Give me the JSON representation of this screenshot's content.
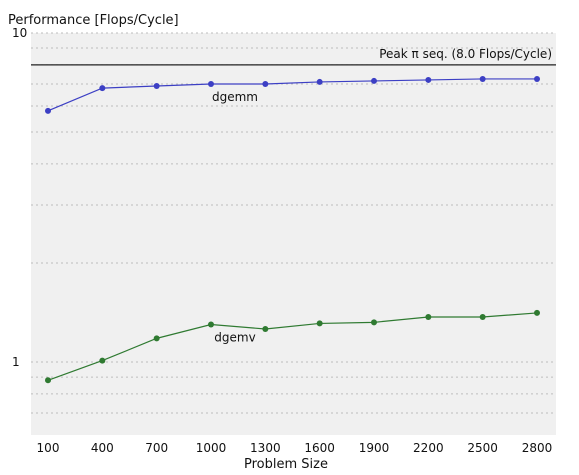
{
  "chart_data": {
    "type": "line",
    "title": "",
    "ylabel": "Performance [Flops/Cycle]",
    "xlabel": "Problem Size",
    "yscale": "log",
    "ylim": [
      0.6,
      10
    ],
    "yticks": [
      {
        "value": 10,
        "label": "10"
      },
      {
        "value": 1,
        "label": "1"
      }
    ],
    "categories": [
      "100",
      "400",
      "700",
      "1000",
      "1300",
      "1600",
      "1900",
      "2200",
      "2500",
      "2800"
    ],
    "x": [
      100,
      400,
      700,
      1000,
      1300,
      1600,
      1900,
      2200,
      2500,
      2800
    ],
    "grid": "horizontal dashed",
    "series": [
      {
        "name": "dgemm",
        "color": "#3c3fc4",
        "values": [
          5.8,
          6.8,
          6.9,
          7.0,
          7.0,
          7.1,
          7.15,
          7.2,
          7.25,
          7.25
        ]
      },
      {
        "name": "dgemv",
        "color": "#2f7a31",
        "values": [
          0.88,
          1.01,
          1.18,
          1.3,
          1.26,
          1.31,
          1.32,
          1.37,
          1.37,
          1.41
        ]
      }
    ],
    "peak": {
      "label": "Peak π seq. (8.0 Flops/Cycle)",
      "value": 8.0
    }
  }
}
